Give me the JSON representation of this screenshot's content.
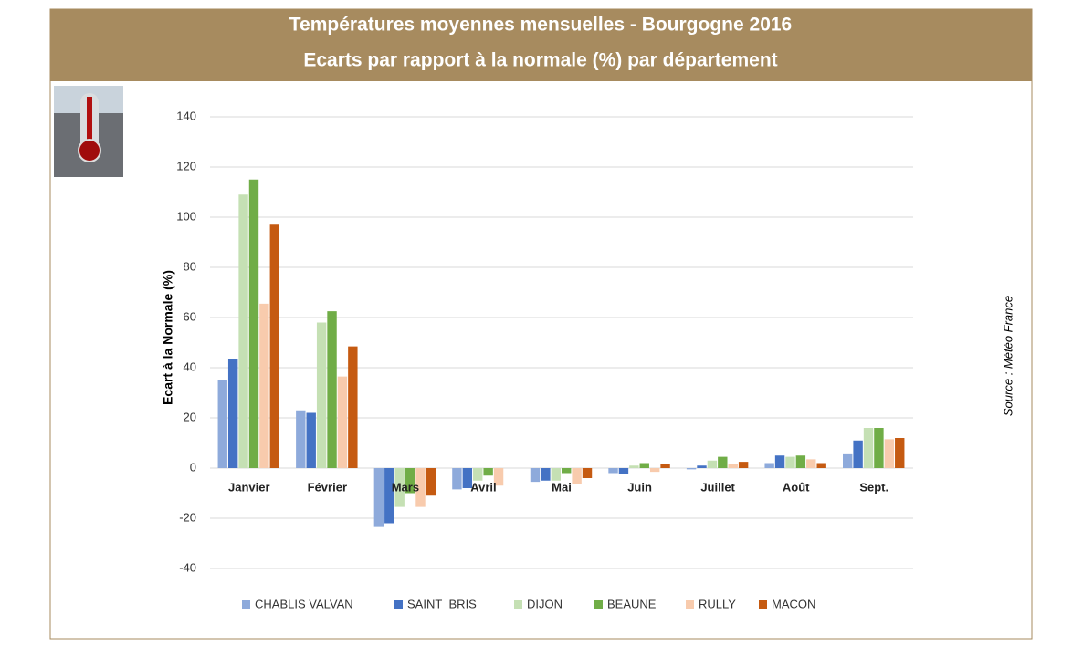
{
  "chart_data": {
    "type": "bar",
    "title": "Températures moyennes mensuelles - Bourgogne 2016",
    "subtitle": "Ecarts par rapport à la normale (%) par département",
    "y_label": "Ecart à la Normale (%)",
    "source": "Source : Météo France",
    "categories": [
      "Janvier",
      "Février",
      "Mars",
      "Avril",
      "Mai",
      "Juin",
      "Juillet",
      "Août",
      "Sept."
    ],
    "series": [
      {
        "name": "CHABLIS VALVAN",
        "color": "#8eaadb",
        "values": [
          35,
          23,
          -23.5,
          -8.5,
          -5.5,
          -2,
          -0.5,
          2,
          5.5
        ]
      },
      {
        "name": "SAINT_BRIS",
        "color": "#4472c4",
        "values": [
          43.5,
          22,
          -22,
          -8,
          -5,
          -2.5,
          1,
          5,
          11
        ]
      },
      {
        "name": "DIJON",
        "color": "#c5e0b4",
        "values": [
          109,
          58,
          -15.5,
          -5,
          -5,
          1,
          3,
          4.5,
          16
        ]
      },
      {
        "name": "BEAUNE",
        "color": "#70ad47",
        "values": [
          115,
          62.5,
          -10,
          -3,
          -2,
          2,
          4.5,
          5,
          16
        ]
      },
      {
        "name": "RULLY",
        "color": "#f8cbad",
        "values": [
          65.5,
          36.5,
          -15.5,
          -7,
          -6.5,
          -1.5,
          1.5,
          3.5,
          11.5
        ]
      },
      {
        "name": "MACON",
        "color": "#c55a11",
        "values": [
          97,
          48.5,
          -11,
          0,
          -4,
          1.5,
          2.5,
          2,
          12
        ]
      }
    ],
    "ylim": [
      -40,
      140
    ],
    "yticks": [
      -40,
      -20,
      0,
      20,
      40,
      60,
      80,
      100,
      120,
      140
    ],
    "grid": true
  }
}
